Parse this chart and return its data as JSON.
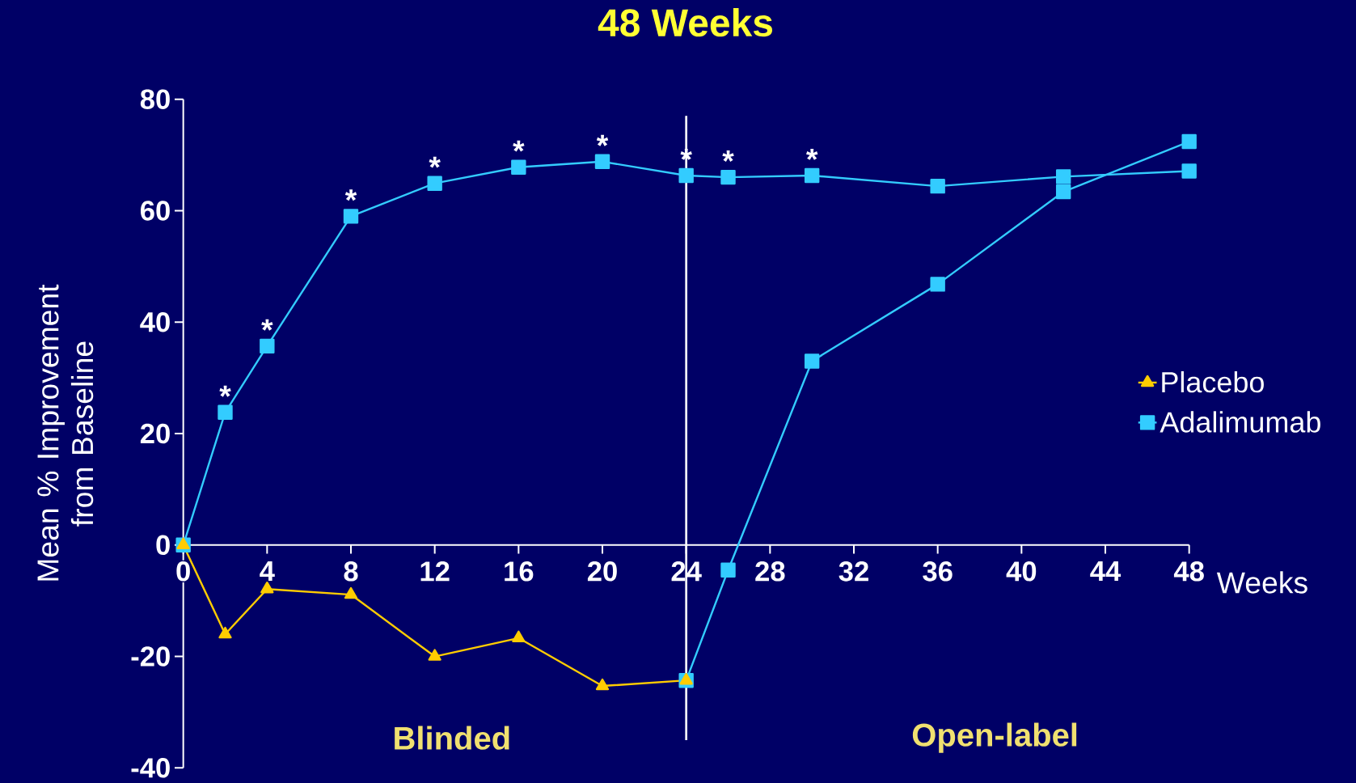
{
  "chart_data": {
    "type": "line",
    "title": "48 Weeks",
    "xlabel": "Weeks",
    "ylabel": "Mean % Improvement from Baseline",
    "xlim": [
      0,
      48
    ],
    "ylim": [
      -40,
      80
    ],
    "xticks": [
      0,
      4,
      8,
      12,
      16,
      20,
      24,
      28,
      32,
      36,
      40,
      44,
      48
    ],
    "yticks": [
      -40,
      -20,
      0,
      20,
      40,
      60,
      80
    ],
    "legend": "right",
    "grid": false,
    "line_style": "solid",
    "series": [
      {
        "name": "Placebo",
        "color": "#ffcc00",
        "marker": "triangle",
        "x": [
          0,
          2,
          4,
          8,
          12,
          16,
          20,
          24
        ],
        "values": [
          0,
          -16,
          -7.9,
          -8.9,
          -20,
          -16.7,
          -25.3,
          -24.3
        ]
      },
      {
        "name": "Adalimumab",
        "color": "#33ccff",
        "marker": "square",
        "x": [
          0,
          2,
          4,
          8,
          12,
          16,
          20,
          24,
          26,
          30,
          36,
          42,
          48
        ],
        "values": [
          0,
          23.8,
          35.7,
          59,
          64.9,
          67.8,
          68.8,
          66.3,
          66,
          66.3,
          64.4,
          66.1,
          67.1
        ]
      },
      {
        "color": "#33ccff",
        "marker": "square",
        "x": [
          24,
          26,
          30,
          36,
          42,
          48
        ],
        "values": [
          -24.3,
          -4.5,
          33,
          46.8,
          63.4,
          72.4
        ]
      }
    ],
    "ref_lines": [
      {
        "axis": "x",
        "value": 24,
        "color": "#ffffff"
      }
    ],
    "annotations": [
      {
        "text": "*",
        "x": 2,
        "y": 23.8
      },
      {
        "text": "*",
        "x": 4,
        "y": 35.7
      },
      {
        "text": "*",
        "x": 8,
        "y": 59
      },
      {
        "text": "*",
        "x": 12,
        "y": 64.9
      },
      {
        "text": "*",
        "x": 16,
        "y": 67.8
      },
      {
        "text": "*",
        "x": 20,
        "y": 68.8
      },
      {
        "text": "*",
        "x": 24,
        "y": 66.3
      },
      {
        "text": "*",
        "x": 26,
        "y": 66
      },
      {
        "text": "*",
        "x": 30,
        "y": 66.3
      },
      "Blinded",
      "Open-label"
    ]
  }
}
